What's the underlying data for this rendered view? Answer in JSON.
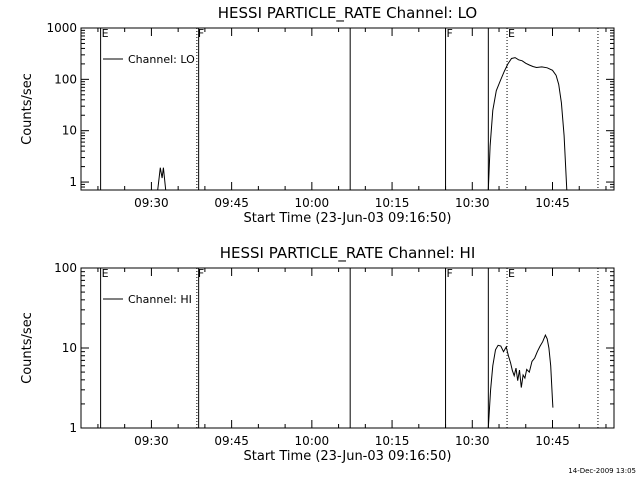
{
  "chart_data": [
    {
      "type": "line",
      "title": "HESSI PARTICLE_RATE Channel: LO",
      "xlabel": "Start Time (23-Jun-03 09:16:50)",
      "ylabel": "Counts/sec",
      "yscale": "log",
      "ylim": [
        0.7,
        1000
      ],
      "xlim": [
        "09:16:50",
        "10:56:30"
      ],
      "x_ticks": [
        "09:30",
        "09:45",
        "10:00",
        "10:15",
        "10:30",
        "10:45"
      ],
      "y_ticks": [
        "1",
        "10",
        "100",
        "1000"
      ],
      "grid": false,
      "legend": {
        "position": "top-left",
        "entries": [
          "Channel: LO"
        ]
      },
      "markers": [
        {
          "time": "09:20:30",
          "label": "E",
          "style": "solid"
        },
        {
          "time": "09:38:30",
          "label": "F",
          "style": "dotted"
        },
        {
          "time": "09:38:50",
          "label": "",
          "style": "solid"
        },
        {
          "time": "10:07:10",
          "label": "",
          "style": "solid"
        },
        {
          "time": "10:25:00",
          "label": "F",
          "style": "solid"
        },
        {
          "time": "10:33:00",
          "label": "",
          "style": "solid"
        },
        {
          "time": "10:36:30",
          "label": "E",
          "style": "dotted"
        },
        {
          "time": "10:53:30",
          "label": "",
          "style": "dotted"
        }
      ],
      "series": [
        {
          "name": "Channel: LO",
          "segments": [
            [
              [
                "09:31:10",
                0.7
              ],
              [
                "09:31:40",
                1.9
              ],
              [
                "09:32:00",
                1.2
              ],
              [
                "09:32:15",
                1.9
              ],
              [
                "09:32:40",
                0.7
              ]
            ],
            [
              [
                "10:33:00",
                0.7
              ],
              [
                "10:33:20",
                5
              ],
              [
                "10:33:50",
                25
              ],
              [
                "10:34:30",
                60
              ],
              [
                "10:35:15",
                95
              ],
              [
                "10:36:00",
                145
              ],
              [
                "10:36:40",
                200
              ],
              [
                "10:37:20",
                255
              ],
              [
                "10:38:00",
                265
              ],
              [
                "10:38:40",
                240
              ],
              [
                "10:39:20",
                230
              ],
              [
                "10:40:00",
                205
              ],
              [
                "10:40:40",
                190
              ],
              [
                "10:41:20",
                178
              ],
              [
                "10:42:00",
                170
              ],
              [
                "10:43:00",
                175
              ],
              [
                "10:44:00",
                168
              ],
              [
                "10:45:00",
                150
              ],
              [
                "10:45:40",
                120
              ],
              [
                "10:46:10",
                80
              ],
              [
                "10:46:40",
                35
              ],
              [
                "10:47:10",
                8
              ],
              [
                "10:47:40",
                0.7
              ]
            ]
          ]
        }
      ]
    },
    {
      "type": "line",
      "title": "HESSI PARTICLE_RATE Channel: HI",
      "xlabel": "Start Time (23-Jun-03 09:16:50)",
      "ylabel": "Counts/sec",
      "yscale": "log",
      "ylim": [
        1,
        100
      ],
      "xlim": [
        "09:16:50",
        "10:56:30"
      ],
      "x_ticks": [
        "09:30",
        "09:45",
        "10:00",
        "10:15",
        "10:30",
        "10:45"
      ],
      "y_ticks": [
        "1",
        "10",
        "100"
      ],
      "grid": false,
      "legend": {
        "position": "top-left",
        "entries": [
          "Channel: HI"
        ]
      },
      "markers": [
        {
          "time": "09:20:30",
          "label": "E",
          "style": "solid"
        },
        {
          "time": "09:38:30",
          "label": "F",
          "style": "dotted"
        },
        {
          "time": "09:38:50",
          "label": "",
          "style": "solid"
        },
        {
          "time": "10:07:10",
          "label": "",
          "style": "solid"
        },
        {
          "time": "10:25:00",
          "label": "F",
          "style": "solid"
        },
        {
          "time": "10:33:00",
          "label": "",
          "style": "solid"
        },
        {
          "time": "10:36:30",
          "label": "E",
          "style": "dotted"
        },
        {
          "time": "10:53:30",
          "label": "",
          "style": "dotted"
        }
      ],
      "series": [
        {
          "name": "Channel: HI",
          "segments": [
            [
              [
                "10:33:00",
                1
              ],
              [
                "10:33:25",
                3
              ],
              [
                "10:33:50",
                6
              ],
              [
                "10:34:20",
                9.5
              ],
              [
                "10:34:50",
                10.8
              ],
              [
                "10:35:20",
                10.6
              ],
              [
                "10:35:50",
                9
              ],
              [
                "10:36:20",
                10.3
              ],
              [
                "10:36:45",
                8
              ],
              [
                "10:37:10",
                6.5
              ],
              [
                "10:37:30",
                5.2
              ],
              [
                "10:37:50",
                4.5
              ],
              [
                "10:38:10",
                5.6
              ],
              [
                "10:38:30",
                3.9
              ],
              [
                "10:38:50",
                5.3
              ],
              [
                "10:39:10",
                3.2
              ],
              [
                "10:39:30",
                4.6
              ],
              [
                "10:39:50",
                4.2
              ],
              [
                "10:40:10",
                5.4
              ],
              [
                "10:40:40",
                5.0
              ],
              [
                "10:41:10",
                6.8
              ],
              [
                "10:41:40",
                7.5
              ],
              [
                "10:42:10",
                9
              ],
              [
                "10:42:40",
                10.5
              ],
              [
                "10:43:10",
                12
              ],
              [
                "10:43:40",
                14.5
              ],
              [
                "10:44:00",
                13
              ],
              [
                "10:44:20",
                10
              ],
              [
                "10:44:40",
                6
              ],
              [
                "10:45:00",
                2.2
              ],
              [
                "10:45:05",
                1.8
              ]
            ]
          ]
        }
      ]
    }
  ],
  "footer": {
    "timestamp": "14-Dec-2009 13:05"
  }
}
